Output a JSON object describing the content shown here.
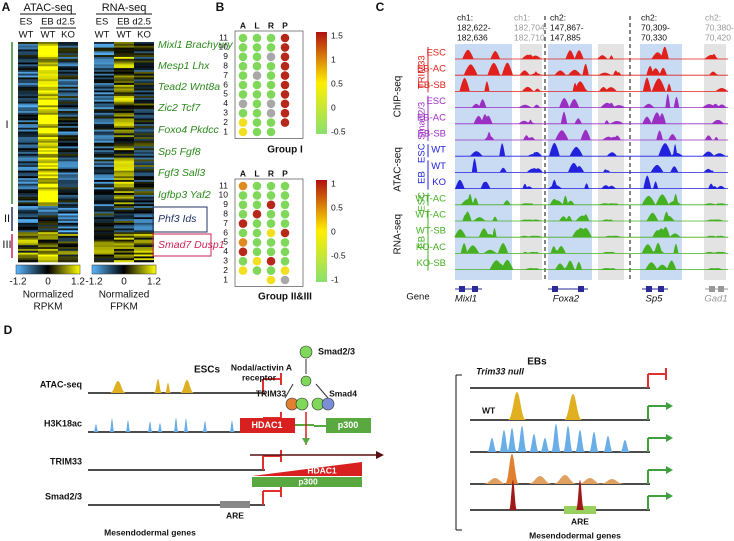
{
  "A": {
    "label": "A",
    "atac": {
      "title": "ATAC-seq",
      "groups": [
        "ES",
        "EB d2.5"
      ],
      "columns": [
        "WT",
        "WT",
        "KO"
      ],
      "scale_ticks": [
        "-1.2",
        "0",
        "1.2"
      ],
      "scale_label": [
        "Normalized",
        "RPKM"
      ]
    },
    "rna": {
      "title": "RNA-seq",
      "groups": [
        "ES",
        "EB d2.5"
      ],
      "columns": [
        "WT",
        "WT",
        "KO"
      ],
      "scale_ticks": [
        "-1.2",
        "0",
        "1.2"
      ],
      "scale_label": [
        "Normalized",
        "FPKM"
      ]
    },
    "clusters": [
      "I",
      "II",
      "III"
    ],
    "genes": [
      "Mixl1 Brachyury",
      "Mesp1 Lhx",
      "Tead2 Wnt8a",
      "Zic2 Tcf7",
      "Foxo4 Pkdcc",
      "Sp5 Fgf8",
      "Fgf3 Sall3",
      "Igfbp3 Yaf2",
      "Phf3 Ids",
      "Smad7 Dusp1"
    ]
  },
  "B": {
    "label": "B",
    "columns": [
      "A",
      "L",
      "R",
      "P"
    ],
    "rows": [
      "11",
      "10",
      "9",
      "8",
      "7",
      "6",
      "5",
      "4",
      "3",
      "2",
      "1"
    ],
    "group1": {
      "title": "Group I",
      "scale_ticks": [
        "1.5",
        "1",
        "0.5",
        "0",
        "-0.5"
      ]
    },
    "group2": {
      "title": "Group II&III",
      "scale_ticks": [
        "1",
        "0.5",
        "0",
        "-0.5",
        "-1"
      ]
    }
  },
  "C": {
    "label": "C",
    "loci": [
      [
        "ch1:",
        "182,622-",
        "182,636"
      ],
      [
        "ch1:",
        "182,704-",
        "182,710"
      ],
      [
        "ch2:",
        "147,867-",
        "147,885"
      ],
      [
        "ch2:",
        "70,309-",
        "70,330"
      ],
      [
        "ch2:",
        "70,380-",
        "70,420"
      ]
    ],
    "tracks": [
      {
        "assay": "ChIP-seq",
        "groups": [
          {
            "name": "TRIM33",
            "color": "#e0201c",
            "rows": [
              "ESC",
              "EB-AC",
              "EB-SB"
            ]
          },
          {
            "name": "Smad2/3",
            "color": "#9a2fc4",
            "rows": [
              "ESC",
              "EB-AC",
              "EB-SB"
            ]
          }
        ]
      },
      {
        "assay": "ATAC-seq",
        "groups": [
          {
            "name": "ESC",
            "color": "#2222dd",
            "rows": [
              "WT"
            ]
          },
          {
            "name": "EB",
            "color": "#2222dd",
            "rows": [
              "WT",
              "KO"
            ]
          }
        ]
      },
      {
        "assay": "RNA-seq",
        "groups": [
          {
            "name": "ESC",
            "color": "#44b022",
            "rows": [
              "WT-AC"
            ]
          },
          {
            "name": "EB",
            "color": "#44b022",
            "rows": [
              "WT-AC",
              "WT-SB",
              "KO-AC",
              "KO-SB"
            ]
          }
        ]
      }
    ],
    "gene_label": "Gene",
    "genes": [
      "Mixl1",
      "Foxa2",
      "Sp5",
      "Gad1"
    ]
  },
  "D": {
    "label": "D",
    "esc": {
      "title": "ESCs",
      "tracks": [
        "ATAC-seq",
        "H3K18ac",
        "TRIM33",
        "Smad2/3"
      ],
      "are": "ARE",
      "footer": "Mesendodermal genes"
    },
    "mechanism": {
      "smad23": "Smad2/3",
      "receptor": [
        "Nodal/activin A",
        "receptor"
      ],
      "trim33": "TRIM33",
      "smad4": "Smad4",
      "hdac1": "HDAC1",
      "p300": "p300",
      "bar_labels": [
        "HDAC1",
        "p300"
      ]
    },
    "eb": {
      "title": "EBs",
      "null_label": "Trim33 null",
      "wt": "WT",
      "are": "ARE",
      "footer": "Mesendodermal genes"
    }
  }
}
